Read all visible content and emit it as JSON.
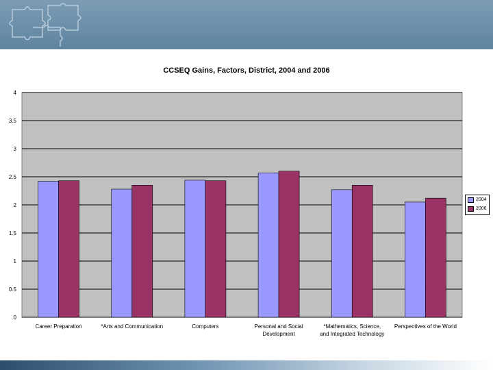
{
  "chart_data": {
    "type": "bar",
    "title": "CCSEQ Gains, Factors, District, 2004 and 2006",
    "xlabel": "",
    "ylabel": "",
    "ylim": [
      0,
      4
    ],
    "y_ticks": [
      "0",
      "0.5",
      "1",
      "1.5",
      "2",
      "2.5",
      "3",
      "3.5",
      "4"
    ],
    "grid": "horizontal",
    "legend_position": "right",
    "categories": [
      [
        "Career Preparation"
      ],
      [
        "*Arts and Communication"
      ],
      [
        "Computers"
      ],
      [
        "Personal and Social",
        "Development"
      ],
      [
        "*Mathematics, Science,",
        "and Integrated Technology"
      ],
      [
        "Perspectives of the World"
      ]
    ],
    "series": [
      {
        "name": "2004",
        "color": "#9999ff",
        "values": [
          2.42,
          2.28,
          2.44,
          2.57,
          2.27,
          2.05
        ]
      },
      {
        "name": "2006",
        "color": "#993366",
        "values": [
          2.43,
          2.35,
          2.43,
          2.6,
          2.35,
          2.12
        ]
      }
    ]
  }
}
